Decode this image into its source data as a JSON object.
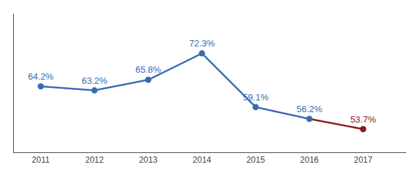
{
  "chart_data": {
    "type": "line",
    "x": [
      2011,
      2012,
      2013,
      2014,
      2015,
      2016,
      2017
    ],
    "values": [
      64.2,
      63.2,
      65.8,
      72.3,
      59.1,
      56.2,
      53.7
    ],
    "value_labels": [
      "64.2%",
      "63.2%",
      "65.8%",
      "72.3%",
      "59.1%",
      "56.2%",
      "53.7%"
    ],
    "colors": [
      "#3A6AB4",
      "#3A6AB4",
      "#3A6AB4",
      "#3A6AB4",
      "#3A6AB4",
      "#3A6AB4",
      "#8B1A1A"
    ],
    "marker": "circle",
    "data_labels": true,
    "xlim": [
      2010.5,
      2017.8
    ],
    "xticks": [
      2011,
      2012,
      2013,
      2014,
      2015,
      2016,
      2017
    ],
    "ylim": [
      48,
      82
    ],
    "tick_labels": "x",
    "grid": false
  }
}
